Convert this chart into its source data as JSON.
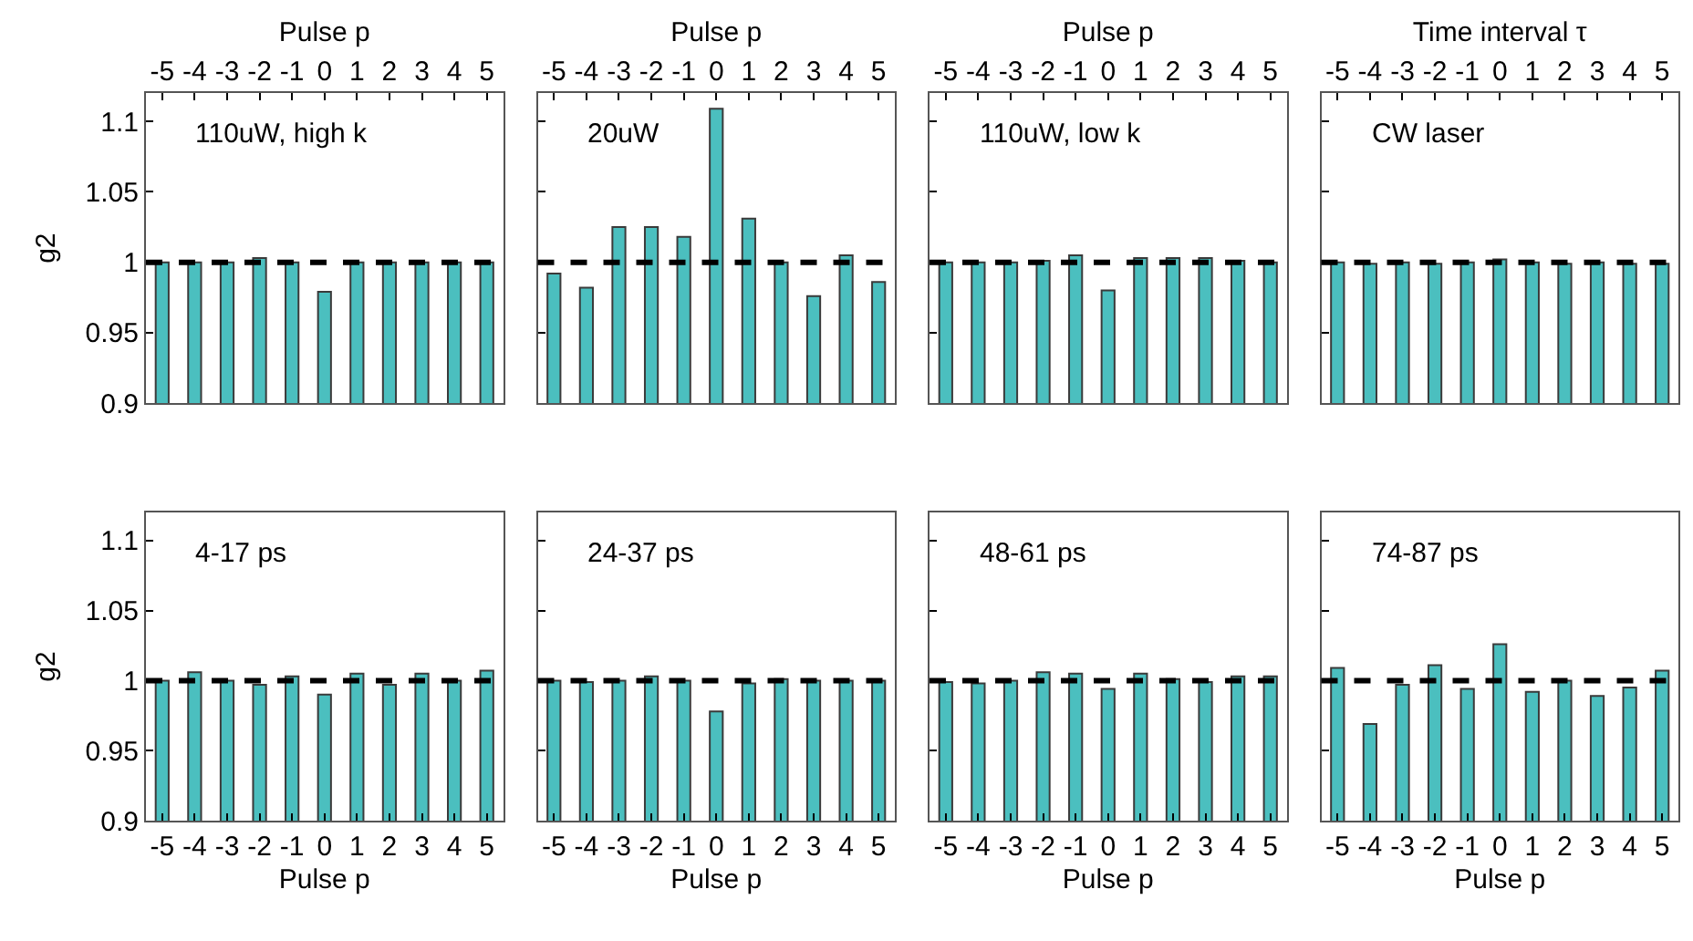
{
  "chart_data": [
    {
      "type": "bar",
      "xlabel": "Pulse p",
      "ylabel": "g2",
      "annotations": [
        "110uW, high k"
      ],
      "categories": [
        "-5",
        "-4",
        "-3",
        "-2",
        "-1",
        "0",
        "1",
        "2",
        "3",
        "4",
        "5"
      ],
      "values": [
        1.0,
        1.0,
        1.0,
        1.003,
        1.0,
        0.979,
        1.0,
        1.0,
        1.0,
        1.0,
        1.0
      ],
      "color": "#4bbfbf",
      "ylim": [
        0.9,
        1.12
      ],
      "yticks": [
        0.9,
        0.95,
        1,
        1.05,
        1.1
      ],
      "ref_lines": [
        {
          "axis": "y",
          "value": 1,
          "color": "#000000",
          "line_style": "dashed"
        }
      ]
    },
    {
      "type": "bar",
      "xlabel": "Pulse p",
      "annotations": [
        "20uW"
      ],
      "categories": [
        "-5",
        "-4",
        "-3",
        "-2",
        "-1",
        "0",
        "1",
        "2",
        "3",
        "4",
        "5"
      ],
      "values": [
        0.992,
        0.982,
        1.025,
        1.025,
        1.018,
        1.109,
        1.031,
        1.0,
        0.976,
        1.005,
        0.986
      ],
      "color": "#4bbfbf",
      "ylim": [
        0.9,
        1.12
      ],
      "yticks": [
        0.9,
        0.95,
        1,
        1.05,
        1.1
      ],
      "ref_lines": [
        {
          "axis": "y",
          "value": 1,
          "color": "#000000",
          "line_style": "dashed"
        }
      ],
      "tick_labels": "x"
    },
    {
      "type": "bar",
      "xlabel": "Pulse p",
      "annotations": [
        "110uW, low k"
      ],
      "categories": [
        "-5",
        "-4",
        "-3",
        "-2",
        "-1",
        "0",
        "1",
        "2",
        "3",
        "4",
        "5"
      ],
      "values": [
        1.0,
        1.0,
        1.0,
        1.001,
        1.005,
        0.98,
        1.003,
        1.003,
        1.003,
        1.001,
        1.0
      ],
      "color": "#4bbfbf",
      "ylim": [
        0.9,
        1.12
      ],
      "yticks": [
        0.9,
        0.95,
        1,
        1.05,
        1.1
      ],
      "ref_lines": [
        {
          "axis": "y",
          "value": 1,
          "color": "#000000",
          "line_style": "dashed"
        }
      ],
      "tick_labels": "x"
    },
    {
      "type": "bar",
      "xlabel": "Time interval τ",
      "annotations": [
        "CW laser"
      ],
      "categories": [
        "-5",
        "-4",
        "-3",
        "-2",
        "-1",
        "0",
        "1",
        "2",
        "3",
        "4",
        "5"
      ],
      "values": [
        1.0,
        0.999,
        1.0,
        0.999,
        1.0,
        1.002,
        1.0,
        0.999,
        1.0,
        0.999,
        0.999
      ],
      "color": "#4bbfbf",
      "ylim": [
        0.9,
        1.12
      ],
      "yticks": [
        0.9,
        0.95,
        1,
        1.05,
        1.1
      ],
      "ref_lines": [
        {
          "axis": "y",
          "value": 1,
          "color": "#000000",
          "line_style": "dashed"
        }
      ],
      "tick_labels": "x"
    },
    {
      "type": "bar",
      "xlabel": "Pulse p",
      "ylabel": "g2",
      "annotations": [
        "4-17 ps"
      ],
      "categories": [
        "-5",
        "-4",
        "-3",
        "-2",
        "-1",
        "0",
        "1",
        "2",
        "3",
        "4",
        "5"
      ],
      "values": [
        1.0,
        1.006,
        1.0,
        0.997,
        1.003,
        0.99,
        1.005,
        0.997,
        1.005,
        1.0,
        1.007
      ],
      "color": "#4bbfbf",
      "ylim": [
        0.9,
        1.12
      ],
      "yticks": [
        0.9,
        0.95,
        1,
        1.05,
        1.1
      ],
      "ref_lines": [
        {
          "axis": "y",
          "value": 1,
          "color": "#000000",
          "line_style": "dashed"
        }
      ]
    },
    {
      "type": "bar",
      "xlabel": "Pulse p",
      "annotations": [
        "24-37 ps"
      ],
      "categories": [
        "-5",
        "-4",
        "-3",
        "-2",
        "-1",
        "0",
        "1",
        "2",
        "3",
        "4",
        "5"
      ],
      "values": [
        1.0,
        0.999,
        1.0,
        1.003,
        1.0,
        0.978,
        0.998,
        1.001,
        1.0,
        1.0,
        1.0
      ],
      "color": "#4bbfbf",
      "ylim": [
        0.9,
        1.12
      ],
      "yticks": [
        0.9,
        0.95,
        1,
        1.05,
        1.1
      ],
      "ref_lines": [
        {
          "axis": "y",
          "value": 1,
          "color": "#000000",
          "line_style": "dashed"
        }
      ],
      "tick_labels": "x"
    },
    {
      "type": "bar",
      "xlabel": "Pulse p",
      "annotations": [
        "48-61 ps"
      ],
      "categories": [
        "-5",
        "-4",
        "-3",
        "-2",
        "-1",
        "0",
        "1",
        "2",
        "3",
        "4",
        "5"
      ],
      "values": [
        0.999,
        0.998,
        1.0,
        1.006,
        1.005,
        0.994,
        1.005,
        1.001,
        0.999,
        1.003,
        1.003
      ],
      "color": "#4bbfbf",
      "ylim": [
        0.9,
        1.12
      ],
      "yticks": [
        0.9,
        0.95,
        1,
        1.05,
        1.1
      ],
      "ref_lines": [
        {
          "axis": "y",
          "value": 1,
          "color": "#000000",
          "line_style": "dashed"
        }
      ],
      "tick_labels": "x"
    },
    {
      "type": "bar",
      "xlabel": "Pulse p",
      "annotations": [
        "74-87 ps"
      ],
      "categories": [
        "-5",
        "-4",
        "-3",
        "-2",
        "-1",
        "0",
        "1",
        "2",
        "3",
        "4",
        "5"
      ],
      "values": [
        1.009,
        0.969,
        0.997,
        1.011,
        0.994,
        1.026,
        0.992,
        1.0,
        0.989,
        0.995,
        1.007
      ],
      "color": "#4bbfbf",
      "ylim": [
        0.9,
        1.12
      ],
      "yticks": [
        0.9,
        0.95,
        1,
        1.05,
        1.1
      ],
      "ref_lines": [
        {
          "axis": "y",
          "value": 1,
          "color": "#000000",
          "line_style": "dashed"
        }
      ],
      "tick_labels": "x"
    }
  ]
}
